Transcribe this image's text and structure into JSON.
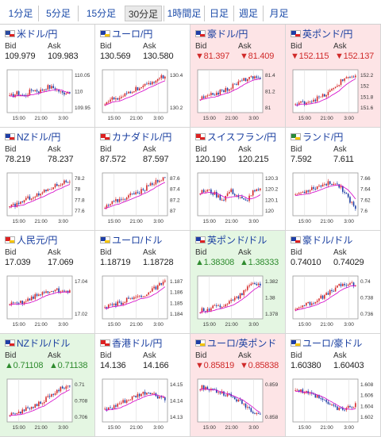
{
  "timeframe_tabs": [
    {
      "label": "1分足",
      "active": false
    },
    {
      "label": "5分足",
      "active": false
    },
    {
      "label": "15分足",
      "active": false
    },
    {
      "label": "30分足",
      "active": true
    },
    {
      "label": "1時間足",
      "active": false
    },
    {
      "label": "日足",
      "active": false
    },
    {
      "label": "週足",
      "active": false
    },
    {
      "label": "月足",
      "active": false
    }
  ],
  "labels": {
    "bid": "Bid",
    "ask": "Ask"
  },
  "colors": {
    "bullish_candle": "#d62b2b",
    "bearish_candle": "#1f3fa6",
    "moving_average_1": "#d400c8",
    "moving_average_2": "#00a9c9",
    "price_up": "#2e8b2e",
    "price_down": "#d02a2a",
    "highlight_down_bg": "#fde4e6",
    "highlight_up_bg": "#e4f6e2"
  },
  "x_tick_labels": [
    "15:00",
    "21:00",
    "3:00"
  ],
  "pairs": [
    {
      "name": "米ドル/円",
      "flag": "us",
      "bid": "109.979",
      "ask": "109.983",
      "direction": "none",
      "highlight": "none",
      "y_ticks": [
        "110.05",
        "110",
        "109.95"
      ],
      "trend": [
        0.35,
        0.45,
        0.38,
        0.55,
        0.5,
        0.62,
        0.58,
        0.45,
        0.5
      ]
    },
    {
      "name": "ユーロ/円",
      "flag": "eu",
      "bid": "130.569",
      "ask": "130.580",
      "direction": "none",
      "highlight": "none",
      "y_ticks": [
        "130.4",
        "130.2"
      ],
      "trend": [
        0.2,
        0.3,
        0.28,
        0.45,
        0.55,
        0.6,
        0.72,
        0.82,
        0.9
      ]
    },
    {
      "name": "豪ドル/円",
      "flag": "au",
      "bid": "81.397",
      "ask": "81.409",
      "direction": "down",
      "highlight": "red",
      "y_ticks": [
        "81.4",
        "81.2",
        "81"
      ],
      "trend": [
        0.3,
        0.35,
        0.45,
        0.5,
        0.6,
        0.72,
        0.82,
        0.85,
        0.8
      ]
    },
    {
      "name": "英ポンド/円",
      "flag": "uk",
      "bid": "152.115",
      "ask": "152.137",
      "direction": "down",
      "highlight": "red",
      "y_ticks": [
        "152.2",
        "152",
        "151.8",
        "151.6"
      ],
      "trend": [
        0.15,
        0.2,
        0.25,
        0.32,
        0.4,
        0.55,
        0.75,
        0.9,
        0.85
      ]
    },
    {
      "name": "NZドル/円",
      "flag": "nz",
      "bid": "78.219",
      "ask": "78.237",
      "direction": "none",
      "highlight": "none",
      "y_ticks": [
        "78.2",
        "78",
        "77.8",
        "77.6"
      ],
      "trend": [
        0.15,
        0.25,
        0.35,
        0.45,
        0.5,
        0.62,
        0.72,
        0.82,
        0.85
      ]
    },
    {
      "name": "カナダドル/円",
      "flag": "ca",
      "bid": "87.572",
      "ask": "87.597",
      "direction": "none",
      "highlight": "none",
      "y_ticks": [
        "87.6",
        "87.4",
        "87.2",
        "87"
      ],
      "trend": [
        0.2,
        0.3,
        0.35,
        0.45,
        0.52,
        0.6,
        0.75,
        0.88,
        0.92
      ]
    },
    {
      "name": "スイスフラン/円",
      "flag": "ch",
      "bid": "120.190",
      "ask": "120.215",
      "direction": "none",
      "highlight": "none",
      "y_ticks": [
        "120.3",
        "120.2",
        "120.1",
        "120"
      ],
      "trend": [
        0.55,
        0.6,
        0.5,
        0.35,
        0.6,
        0.45,
        0.3,
        0.55,
        0.6
      ]
    },
    {
      "name": "ランド/円",
      "flag": "za",
      "bid": "7.592",
      "ask": "7.611",
      "direction": "none",
      "highlight": "none",
      "y_ticks": [
        "7.66",
        "7.64",
        "7.62",
        "7.6"
      ],
      "trend": [
        0.5,
        0.55,
        0.65,
        0.7,
        0.78,
        0.8,
        0.72,
        0.4,
        0.15
      ]
    },
    {
      "name": "人民元/円",
      "flag": "cn",
      "bid": "17.039",
      "ask": "17.069",
      "direction": "none",
      "highlight": "none",
      "y_ticks": [
        "17.04",
        "17.02"
      ],
      "trend": [
        0.3,
        0.35,
        0.4,
        0.5,
        0.58,
        0.65,
        0.7,
        0.65,
        0.68
      ]
    },
    {
      "name": "ユーロ/ドル",
      "flag": "eu",
      "bid": "1.18719",
      "ask": "1.18728",
      "direction": "none",
      "highlight": "none",
      "y_ticks": [
        "1.187",
        "1.186",
        "1.185",
        "1.184"
      ],
      "trend": [
        0.2,
        0.3,
        0.35,
        0.45,
        0.5,
        0.55,
        0.65,
        0.8,
        0.9
      ]
    },
    {
      "name": "英ポンド/ドル",
      "flag": "uk",
      "bid": "1.38308",
      "ask": "1.38333",
      "direction": "up",
      "highlight": "green",
      "y_ticks": [
        "1.382",
        "1.38",
        "1.378"
      ],
      "trend": [
        0.15,
        0.2,
        0.25,
        0.3,
        0.4,
        0.5,
        0.7,
        0.88,
        0.85
      ]
    },
    {
      "name": "豪ドル/ドル",
      "flag": "au",
      "bid": "0.74010",
      "ask": "0.74029",
      "direction": "none",
      "highlight": "none",
      "y_ticks": [
        "0.74",
        "0.738",
        "0.736"
      ],
      "trend": [
        0.2,
        0.3,
        0.35,
        0.45,
        0.55,
        0.7,
        0.82,
        0.85,
        0.82
      ]
    },
    {
      "name": "NZドル/ドル",
      "flag": "nz",
      "bid": "0.71108",
      "ask": "0.71138",
      "direction": "up",
      "highlight": "green",
      "y_ticks": [
        "0.71",
        "0.708",
        "0.706"
      ],
      "trend": [
        0.1,
        0.18,
        0.25,
        0.35,
        0.45,
        0.55,
        0.72,
        0.85,
        0.83
      ]
    },
    {
      "name": "香港ドル/円",
      "flag": "hk",
      "bid": "14.136",
      "ask": "14.166",
      "direction": "none",
      "highlight": "none",
      "y_ticks": [
        "14.15",
        "14.14",
        "14.13"
      ],
      "trend": [
        0.25,
        0.3,
        0.42,
        0.5,
        0.6,
        0.68,
        0.72,
        0.6,
        0.55
      ]
    },
    {
      "name": "ユーロ/英ポンド",
      "flag": "eu",
      "bid": "0.85819",
      "ask": "0.85838",
      "direction": "down",
      "highlight": "red",
      "y_ticks": [
        "0.859",
        "0.858"
      ],
      "trend": [
        0.85,
        0.82,
        0.75,
        0.7,
        0.62,
        0.5,
        0.38,
        0.22,
        0.15
      ]
    },
    {
      "name": "ユーロ/豪ドル",
      "flag": "eu",
      "bid": "1.60380",
      "ask": "1.60403",
      "direction": "none",
      "highlight": "none",
      "y_ticks": [
        "1.608",
        "1.606",
        "1.604",
        "1.602"
      ],
      "trend": [
        0.8,
        0.72,
        0.65,
        0.58,
        0.45,
        0.35,
        0.25,
        0.3,
        0.4
      ]
    }
  ]
}
